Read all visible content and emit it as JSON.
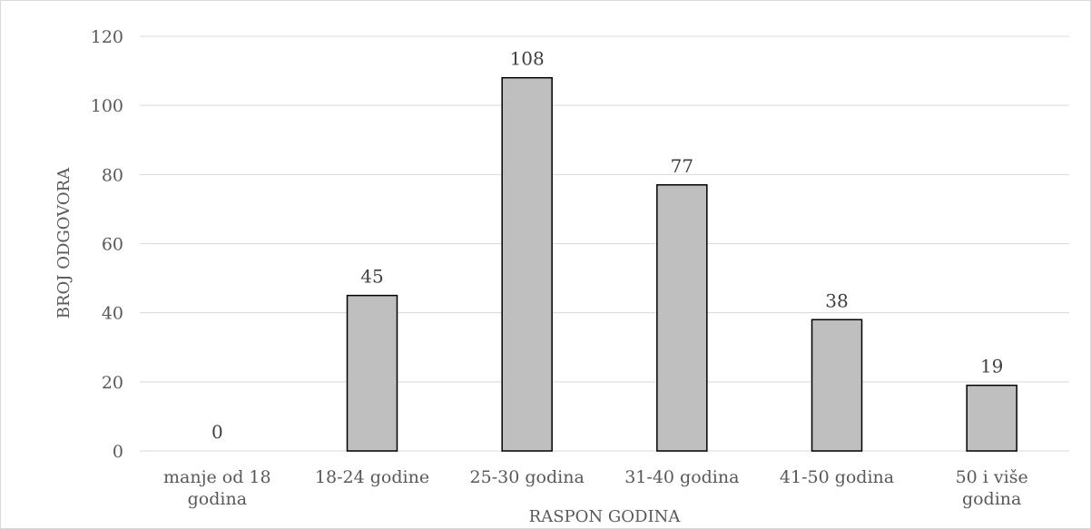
{
  "chart_data": {
    "type": "bar",
    "categories": [
      [
        "manje od 18",
        "godina"
      ],
      [
        "18-24 godine"
      ],
      [
        "25-30 godina"
      ],
      [
        "31-40 godina"
      ],
      [
        "41-50 godina"
      ],
      [
        "50 i više",
        "godina"
      ]
    ],
    "values": [
      0,
      45,
      108,
      77,
      38,
      19
    ],
    "data_labels": [
      "0",
      "45",
      "108",
      "77",
      "38",
      "19"
    ],
    "title": "",
    "xlabel": "RASPON GODINA",
    "ylabel": "BROJ ODGOVORA",
    "ylim": [
      0,
      120
    ],
    "yticks": [
      "0",
      "20",
      "40",
      "60",
      "80",
      "100",
      "120"
    ],
    "grid": true,
    "legend": "none",
    "colors": {
      "bar_fill": "#bfbfbf",
      "bar_stroke": "#000000",
      "grid": "#d9d9d9"
    }
  }
}
